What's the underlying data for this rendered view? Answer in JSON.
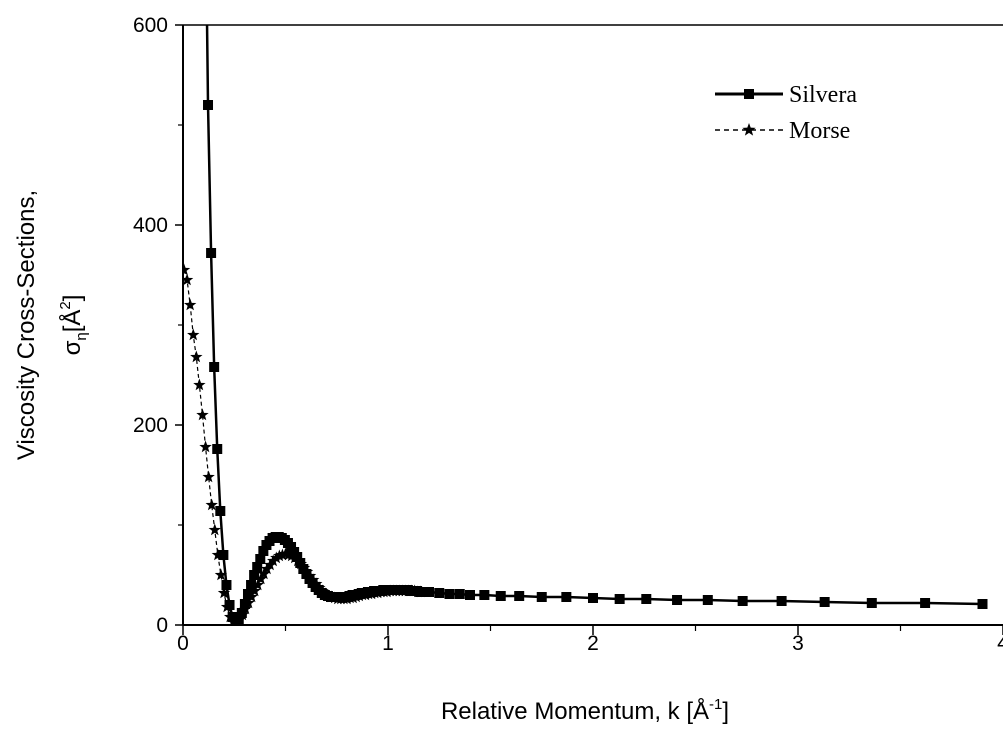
{
  "chart_data": {
    "type": "line",
    "xlabel": "Relative Momentum, k [Å⁻¹]",
    "ylabel_line1": "Viscosity Cross-Sections,",
    "ylabel_line2_prefix": "σ",
    "ylabel_line2_sub": "η",
    "ylabel_line2_unit": "[Å",
    "ylabel_line2_sup": "2",
    "ylabel_line2_close": "]",
    "xlim": [
      0,
      4
    ],
    "ylim": [
      0,
      600
    ],
    "x_ticks": [
      "0",
      "1",
      "2",
      "3",
      "4"
    ],
    "y_ticks": [
      "0",
      "200",
      "400",
      "600"
    ],
    "legend_position": "top-right",
    "series": [
      {
        "name": "Silvera",
        "color": "#000000",
        "line_style": "solid",
        "marker": "square",
        "x": [
          0.122,
          0.137,
          0.152,
          0.167,
          0.182,
          0.197,
          0.212,
          0.227,
          0.242,
          0.257,
          0.272,
          0.287,
          0.302,
          0.317,
          0.332,
          0.347,
          0.362,
          0.377,
          0.392,
          0.407,
          0.422,
          0.437,
          0.452,
          0.467,
          0.482,
          0.497,
          0.512,
          0.527,
          0.542,
          0.557,
          0.572,
          0.587,
          0.602,
          0.617,
          0.632,
          0.647,
          0.662,
          0.677,
          0.692,
          0.707,
          0.722,
          0.737,
          0.752,
          0.767,
          0.782,
          0.797,
          0.812,
          0.827,
          0.842,
          0.857,
          0.872,
          0.887,
          0.902,
          0.917,
          0.932,
          0.947,
          0.962,
          0.977,
          0.992,
          1.007,
          1.022,
          1.037,
          1.052,
          1.067,
          1.082,
          1.097,
          1.112,
          1.127,
          1.142,
          1.157,
          1.2,
          1.25,
          1.3,
          1.35,
          1.4,
          1.47,
          1.55,
          1.64,
          1.75,
          1.87,
          2.0,
          2.13,
          2.26,
          2.41,
          2.56,
          2.73,
          2.92,
          3.13,
          3.36,
          3.62,
          3.9
        ],
        "y": [
          520,
          372,
          258,
          176,
          114,
          70,
          40,
          20,
          8,
          3,
          6,
          12,
          21,
          31,
          40,
          50,
          58,
          66,
          74,
          80,
          84,
          87,
          88,
          88,
          87,
          85,
          82,
          78,
          73,
          68,
          62,
          56,
          51,
          46,
          42,
          38,
          35,
          32,
          30,
          29,
          28,
          28,
          28,
          28,
          28,
          28,
          29,
          30,
          30,
          31,
          32,
          32,
          33,
          33,
          34,
          34,
          34,
          35,
          35,
          35,
          35,
          35,
          35,
          35,
          35,
          35,
          34,
          34,
          34,
          33,
          33,
          32,
          31,
          31,
          30,
          30,
          29,
          29,
          28,
          28,
          27,
          26,
          26,
          25,
          25,
          24,
          24,
          23,
          22,
          22,
          21
        ]
      },
      {
        "name": "Morse",
        "color": "#000000",
        "line_style": "dashed",
        "marker": "star",
        "x": [
          0.005,
          0.02,
          0.035,
          0.05,
          0.065,
          0.08,
          0.095,
          0.11,
          0.125,
          0.14,
          0.155,
          0.17,
          0.185,
          0.2,
          0.215,
          0.23,
          0.245,
          0.26,
          0.275,
          0.29,
          0.305,
          0.32,
          0.335,
          0.35,
          0.365,
          0.38,
          0.395,
          0.41,
          0.425,
          0.44,
          0.455,
          0.47,
          0.485,
          0.5,
          0.515,
          0.53,
          0.545,
          0.56,
          0.575,
          0.59,
          0.605,
          0.62,
          0.635,
          0.65,
          0.665,
          0.68,
          0.695,
          0.71,
          0.725,
          0.74,
          0.755,
          0.77,
          0.785,
          0.8,
          0.815,
          0.83,
          0.845,
          0.86,
          0.875,
          0.89,
          0.905,
          0.92,
          0.935,
          0.95,
          0.965,
          0.98,
          0.995,
          1.01,
          1.025,
          1.04,
          1.055,
          1.07,
          1.085,
          1.1,
          1.115,
          1.13,
          1.145,
          1.16
        ],
        "y": [
          355,
          345,
          320,
          290,
          268,
          240,
          210,
          178,
          148,
          120,
          95,
          70,
          50,
          32,
          18,
          8,
          3,
          2,
          5,
          10,
          16,
          22,
          28,
          34,
          40,
          46,
          51,
          56,
          60,
          64,
          67,
          69,
          70,
          71,
          70,
          69,
          67,
          64,
          61,
          57,
          53,
          49,
          45,
          41,
          37,
          34,
          31,
          29,
          28,
          27,
          26,
          26,
          26,
          26,
          27,
          27,
          28,
          29,
          30,
          30,
          31,
          31,
          32,
          32,
          33,
          33,
          33,
          34,
          34,
          34,
          34,
          34,
          34,
          34,
          34,
          34,
          33,
          33
        ]
      }
    ]
  }
}
